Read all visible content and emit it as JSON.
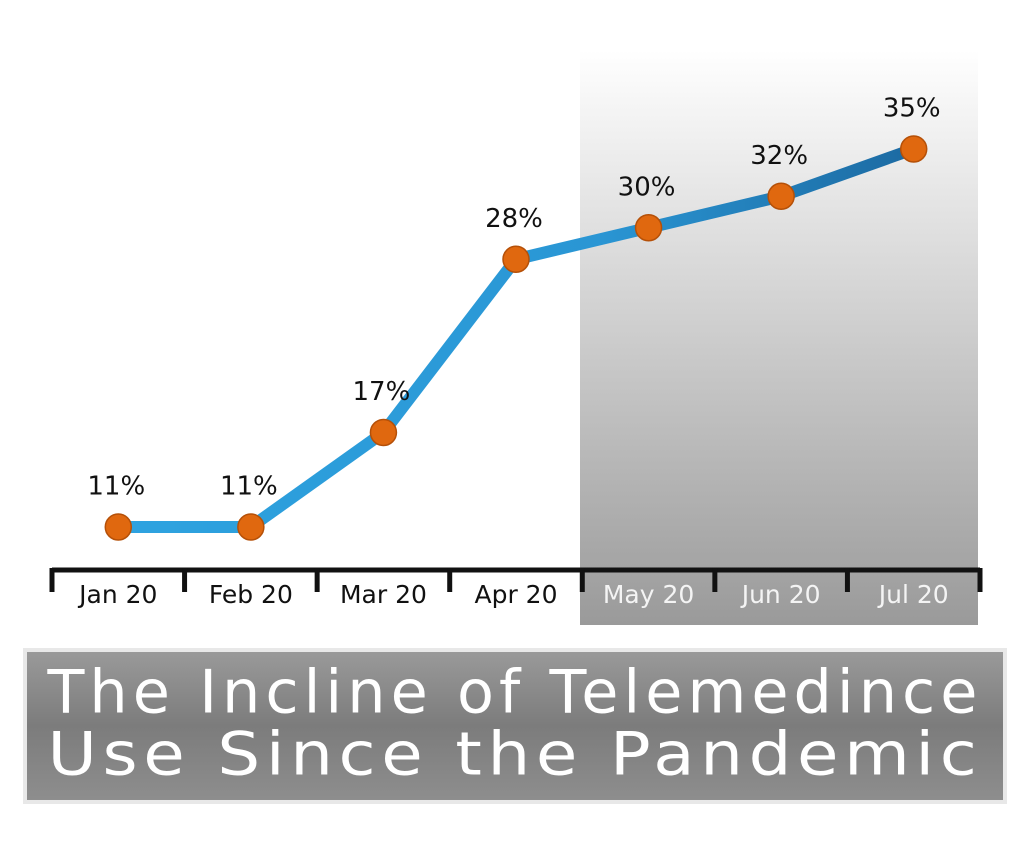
{
  "chart_data": {
    "type": "line",
    "title": [
      "The Incline of Telemedince",
      "Use Since the Pandemic"
    ],
    "categories": [
      "Jan 20",
      "Feb 20",
      "Mar 20",
      "Apr 20",
      "May 20",
      "Jun 20",
      "Jul 20"
    ],
    "values": [
      11,
      11,
      17,
      28,
      30,
      32,
      35
    ],
    "value_labels": [
      "11%",
      "11%",
      "17%",
      "28%",
      "30%",
      "32%",
      "35%"
    ],
    "color": "#2ea3e0",
    "marker_color": "#e0680f"
  }
}
